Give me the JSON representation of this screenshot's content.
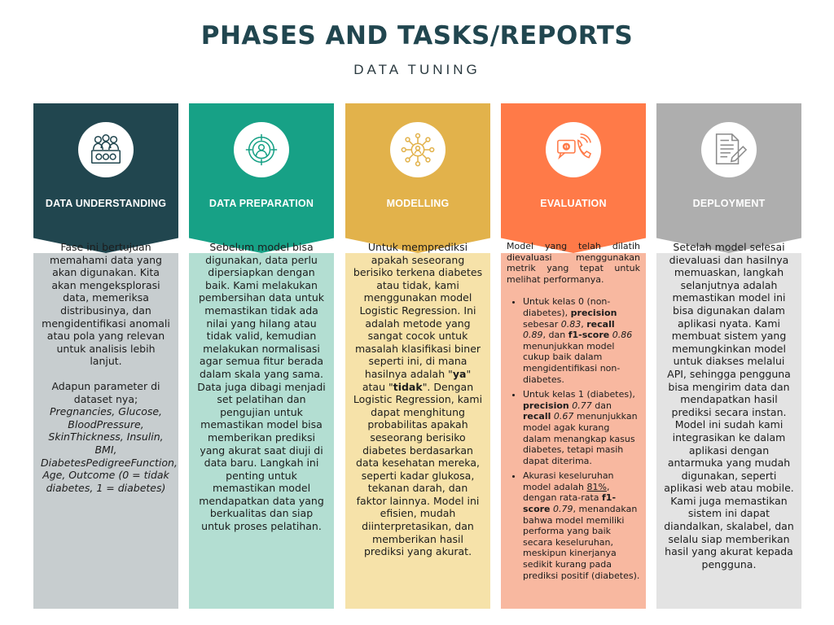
{
  "title": "PHASES AND TASKS/REPORTS",
  "subtitle": "DATA TUNING",
  "columns": [
    {
      "label": "DATA UNDERSTANDING",
      "icon": "team-data-icon",
      "color": "#21464f",
      "p1": "Fase ini bertujuan memahami data yang akan digunakan. Kita akan mengeksplorasi data, memeriksa distribusinya, dan mengidentifikasi anomali atau pola yang relevan untuk analisis lebih lanjut.",
      "p2_lead": "Adapun parameter di dataset nya;",
      "p2_params": "Pregnancies, Glucose, BloodPressure, SkinThickness, Insulin, BMI, DiabetesPedigreeFunction, Age, Outcome (0 = tidak diabetes, 1 = diabetes)"
    },
    {
      "label": "DATA PREPARATION",
      "icon": "target-icon",
      "color": "#17a186",
      "p1": "Sebelum model bisa digunakan, data perlu dipersiapkan dengan baik. Kami melakukan pembersihan data untuk memastikan tidak ada nilai yang hilang atau tidak valid, kemudian melakukan normalisasi agar semua fitur berada dalam skala yang sama. Data juga dibagi menjadi set pelatihan dan pengujian untuk memastikan model bisa memberikan prediksi yang akurat saat diuji di data baru. Langkah ini penting untuk memastikan model mendapatkan data yang berkualitas dan siap untuk proses pelatihan."
    },
    {
      "label": "MODELLING",
      "icon": "network-icon",
      "color": "#e2b24b",
      "t1": "Untuk memprediksi apakah seseorang berisiko terkena diabetes atau tidak, kami menggunakan model Logistic Regression. Ini adalah metode yang sangat cocok untuk masalah klasifikasi biner seperti ini, di mana hasilnya adalah \"",
      "ya": "ya",
      "t2": "\" atau \"",
      "tidak": "tidak",
      "t3": "\". Dengan Logistic Regression, kami dapat menghitung probabilitas apakah seseorang berisiko diabetes berdasarkan data kesehatan mereka, seperti kadar glukosa, tekanan darah, dan faktor lainnya. Model ini efisien, mudah diinterpretasikan, dan memberikan hasil prediksi yang akurat."
    },
    {
      "label": "EVALUATION",
      "icon": "contact-icon",
      "color": "#ff7a48",
      "intro": "Model yang telah dilatih dievaluasi menggunakan metrik yang tepat untuk melihat performanya.",
      "b1": {
        "a": "Untuk kelas 0 (non-diabetes), ",
        "precision": "precision",
        "b": " sebesar ",
        "pv": "0.83",
        "c": ", ",
        "recall": "recall",
        "d": " ",
        "rv": "0.89",
        "e": ", dan ",
        "f1": "f1-score",
        "f": " ",
        "fv": "0.86",
        "g": " menunjukkan model cukup baik dalam mengidentifikasi non-diabetes."
      },
      "b2": {
        "a": "Untuk kelas 1 (diabetes), ",
        "precision": "precision",
        "b": " ",
        "pv": "0.77",
        "c": " dan ",
        "recall": "recall",
        "d": " ",
        "rv": "0.67",
        "e": " menunjukkan model agak kurang dalam menangkap kasus diabetes, tetapi masih dapat diterima."
      },
      "b3": {
        "a": "Akurasi keseluruhan model adalah ",
        "acc": "81%",
        "b": ", dengan rata-rata ",
        "f1": "f1-score",
        "c": " ",
        "fv": "0.79",
        "d": ", menandakan bahwa model memiliki performa yang baik secara keseluruhan, meskipun kinerjanya sedikit kurang pada prediksi positif (diabetes)."
      }
    },
    {
      "label": "DEPLOYMENT",
      "icon": "document-pen-icon",
      "color": "#aeaeae",
      "p1": "Setelah model selesai dievaluasi dan hasilnya memuaskan, langkah selanjutnya adalah memastikan model ini bisa digunakan dalam aplikasi nyata. Kami membuat sistem yang memungkinkan model untuk diakses melalui API, sehingga pengguna bisa mengirim data dan mendapatkan hasil prediksi secara instan. Model ini sudah kami integrasikan ke dalam aplikasi dengan antarmuka yang mudah digunakan, seperti aplikasi web atau mobile. Kami juga memastikan sistem ini dapat diandalkan, skalabel, dan selalu siap memberikan hasil yang akurat kepada pengguna."
    }
  ]
}
